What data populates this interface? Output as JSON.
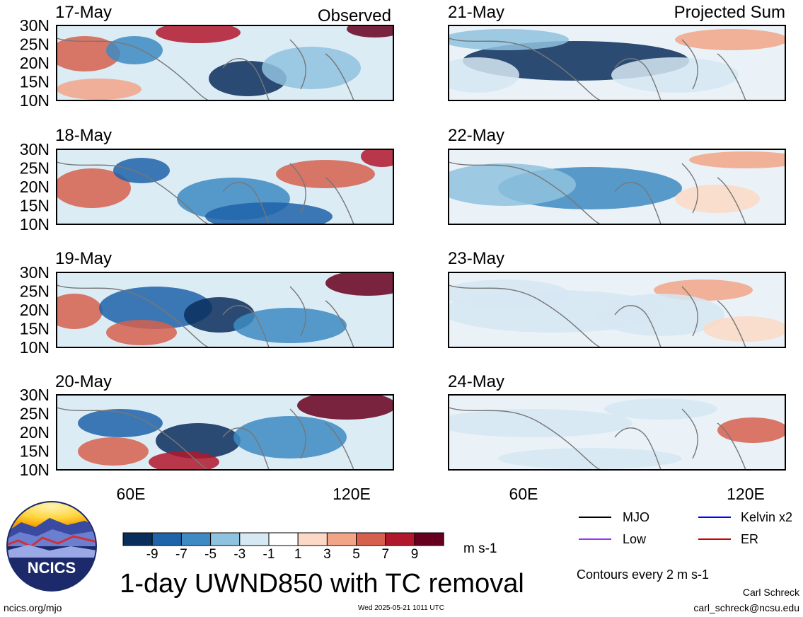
{
  "panels": {
    "observed": {
      "title": "Observed",
      "dates": [
        "17-May",
        "18-May",
        "19-May",
        "20-May"
      ]
    },
    "projected": {
      "title": "Projected Sum",
      "dates": [
        "21-May",
        "22-May",
        "23-May",
        "24-May"
      ]
    }
  },
  "lat_labels": [
    "30N",
    "25N",
    "20N",
    "15N",
    "10N"
  ],
  "lon_labels": [
    "60E",
    "120E"
  ],
  "colorbar": {
    "labels": [
      "-9",
      "-7",
      "-5",
      "-3",
      "-1",
      "1",
      "3",
      "5",
      "7",
      "9"
    ],
    "colors": [
      "#0a2e5c",
      "#1f63a8",
      "#3d8bc2",
      "#8fc2de",
      "#d6e8f3",
      "#ffffff",
      "#fbd9c6",
      "#f2a487",
      "#d6604d",
      "#b2182b",
      "#67001f"
    ],
    "units": "m s-1"
  },
  "title": "1-day UWND850 with TC removal",
  "legend": {
    "items": [
      {
        "label": "MJO",
        "color": "#000000"
      },
      {
        "label": "Kelvin x2",
        "color": "#0000ff"
      },
      {
        "label": "Low",
        "color": "#9933ff"
      },
      {
        "label": "ER",
        "color": "#cc0000"
      }
    ],
    "contours_note": "Contours every 2 m s-1"
  },
  "logo": {
    "text": "NCICS"
  },
  "footer": {
    "left": "ncics.org/mjo",
    "timestamp": "Wed 2025-05-21 1011 UTC",
    "author": "Carl Schreck",
    "email": "carl_schreck@ncsu.edu"
  }
}
